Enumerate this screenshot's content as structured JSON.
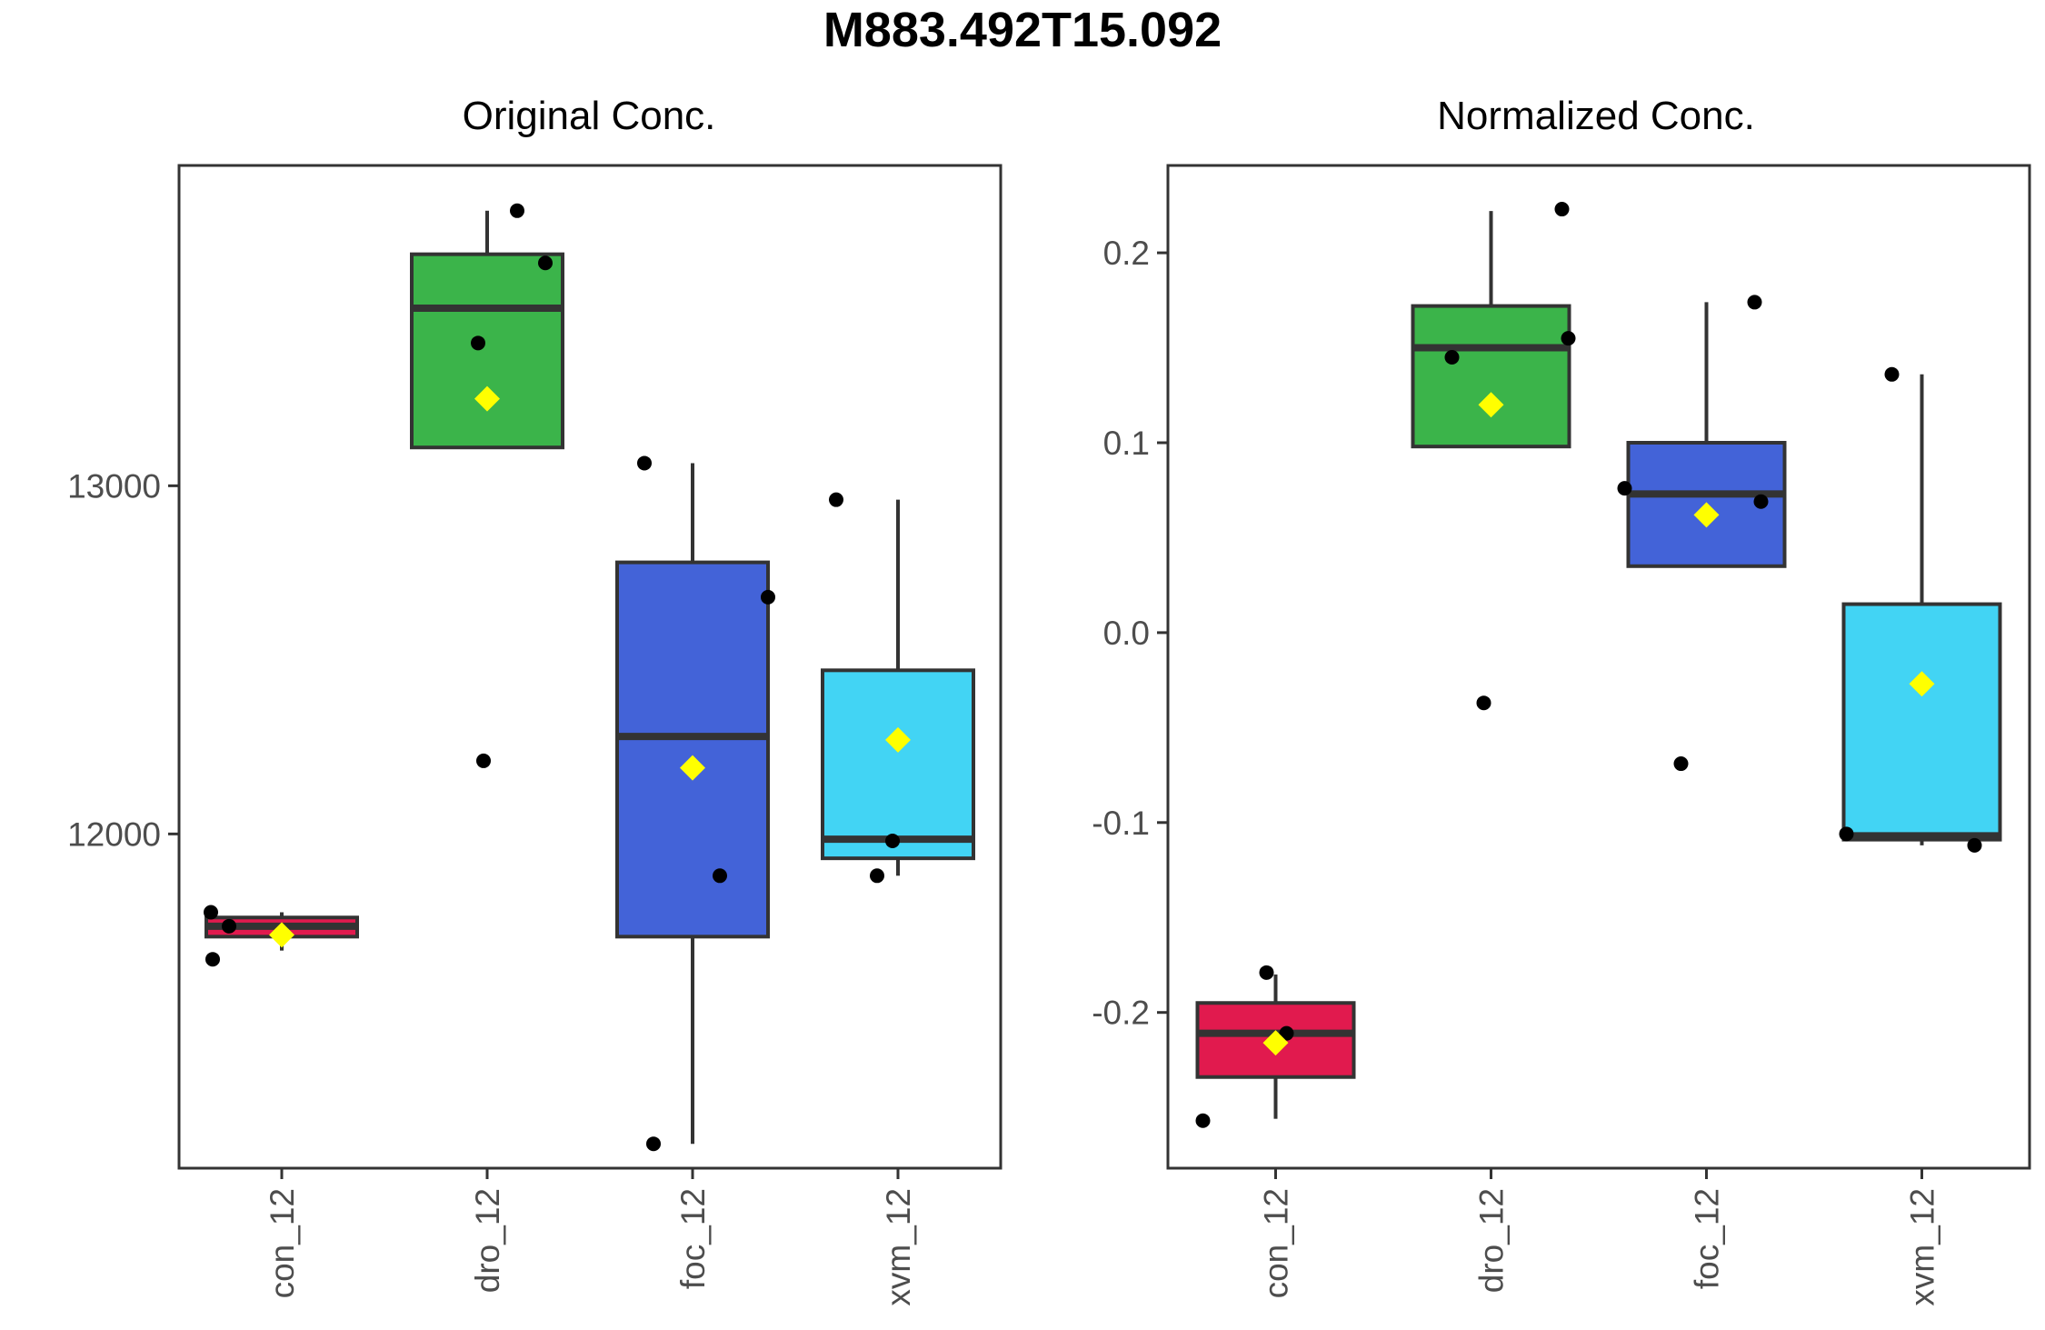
{
  "title": "M883.492T15.092",
  "colors": {
    "con_12": "#E11A4E",
    "dro_12": "#3BB44A",
    "foc_12": "#4363D8",
    "xvm_12": "#42D4F4",
    "mean_marker": "#FFFF00",
    "points": "#000000",
    "box_stroke": "#333333"
  },
  "chart_data": [
    {
      "type": "box",
      "title": "Original Conc.",
      "xlabel": "",
      "ylabel": "",
      "categories": [
        "con_12",
        "dro_12",
        "foc_12",
        "xvm_12"
      ],
      "y_ticks": [
        12000,
        13000
      ],
      "y_tick_labels": [
        "12000",
        "13000"
      ],
      "ylim": [
        11040,
        13920
      ],
      "grid": false,
      "legend": "none",
      "boxes": [
        {
          "group": "con_12",
          "whisker_low": 11665,
          "q1": 11705,
          "median": 11735,
          "q3": 11760,
          "whisker_high": 11775,
          "mean": 11710
        },
        {
          "group": "dro_12",
          "whisker_low": 13110,
          "q1": 13110,
          "median": 13510,
          "q3": 13665,
          "whisker_high": 13790,
          "mean": 13250
        },
        {
          "group": "foc_12",
          "whisker_low": 11110,
          "q1": 11705,
          "median": 12280,
          "q3": 12780,
          "whisker_high": 13065,
          "mean": 12190
        },
        {
          "group": "xvm_12",
          "whisker_low": 11880,
          "q1": 11930,
          "median": 11985,
          "q3": 12470,
          "whisker_high": 12960,
          "mean": 12270
        }
      ],
      "points": [
        {
          "group": "con_12",
          "y": 11775
        },
        {
          "group": "con_12",
          "y": 11735
        },
        {
          "group": "con_12",
          "y": 11640
        },
        {
          "group": "dro_12",
          "y": 13790
        },
        {
          "group": "dro_12",
          "y": 13640
        },
        {
          "group": "dro_12",
          "y": 13410
        },
        {
          "group": "dro_12",
          "y": 12210
        },
        {
          "group": "foc_12",
          "y": 13065
        },
        {
          "group": "foc_12",
          "y": 12680
        },
        {
          "group": "foc_12",
          "y": 11880
        },
        {
          "group": "foc_12",
          "y": 11110
        },
        {
          "group": "xvm_12",
          "y": 12960
        },
        {
          "group": "xvm_12",
          "y": 11980
        },
        {
          "group": "xvm_12",
          "y": 11880
        }
      ]
    },
    {
      "type": "box",
      "title": "Normalized Conc.",
      "xlabel": "",
      "ylabel": "",
      "categories": [
        "con_12",
        "dro_12",
        "foc_12",
        "xvm_12"
      ],
      "y_ticks": [
        -0.2,
        -0.1,
        0.0,
        0.1,
        0.2
      ],
      "y_tick_labels": [
        "-0.2",
        "-0.1",
        "0.0",
        "0.1",
        "0.2"
      ],
      "ylim": [
        -0.282,
        0.246
      ],
      "grid": false,
      "legend": "none",
      "boxes": [
        {
          "group": "con_12",
          "whisker_low": -0.256,
          "q1": -0.234,
          "median": -0.211,
          "q3": -0.195,
          "whisker_high": -0.18,
          "mean": -0.216
        },
        {
          "group": "dro_12",
          "whisker_low": 0.098,
          "q1": 0.098,
          "median": 0.15,
          "q3": 0.172,
          "whisker_high": 0.222,
          "mean": 0.12
        },
        {
          "group": "foc_12",
          "whisker_low": 0.035,
          "q1": 0.035,
          "median": 0.073,
          "q3": 0.1,
          "whisker_high": 0.174,
          "mean": 0.062
        },
        {
          "group": "xvm_12",
          "whisker_low": -0.112,
          "q1": -0.109,
          "median": -0.107,
          "q3": 0.015,
          "whisker_high": 0.136,
          "mean": -0.027
        }
      ],
      "points": [
        {
          "group": "con_12",
          "y": -0.179
        },
        {
          "group": "con_12",
          "y": -0.211
        },
        {
          "group": "con_12",
          "y": -0.257
        },
        {
          "group": "dro_12",
          "y": 0.223
        },
        {
          "group": "dro_12",
          "y": 0.155
        },
        {
          "group": "dro_12",
          "y": 0.145
        },
        {
          "group": "dro_12",
          "y": -0.037
        },
        {
          "group": "foc_12",
          "y": 0.174
        },
        {
          "group": "foc_12",
          "y": 0.076
        },
        {
          "group": "foc_12",
          "y": 0.069
        },
        {
          "group": "foc_12",
          "y": -0.069
        },
        {
          "group": "xvm_12",
          "y": 0.136
        },
        {
          "group": "xvm_12",
          "y": -0.106
        },
        {
          "group": "xvm_12",
          "y": -0.112
        }
      ]
    }
  ]
}
